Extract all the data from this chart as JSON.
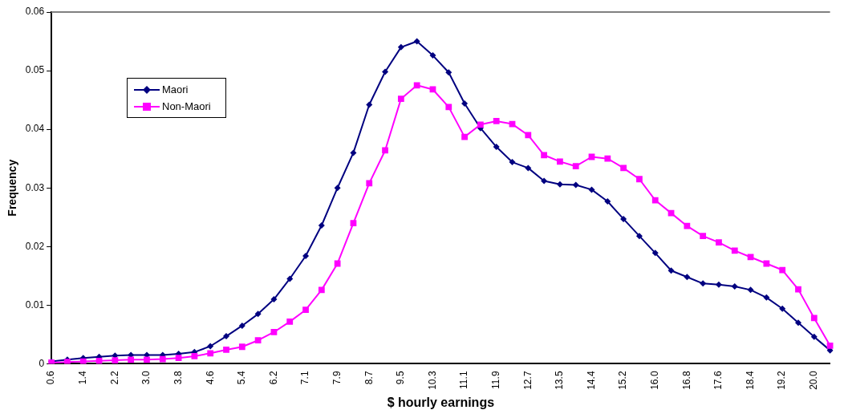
{
  "chart_data": {
    "type": "line",
    "xlabel": "$ hourly earnings",
    "ylabel": "Frequency",
    "categories": [
      "0.6",
      null,
      "1.4",
      null,
      "2.2",
      null,
      "3.0",
      null,
      "3.8",
      null,
      "4.6",
      null,
      "5.4",
      null,
      "6.2",
      null,
      "7.1",
      null,
      "7.9",
      null,
      "8.7",
      null,
      "9.5",
      null,
      "10.3",
      null,
      "11.1",
      null,
      "11.9",
      null,
      "12.7",
      null,
      "13.5",
      null,
      "14.4",
      null,
      "15.2",
      null,
      "16.0",
      null,
      "16.8",
      null,
      "17.6",
      null,
      "18.4",
      null,
      "19.2",
      null,
      "20.0",
      null
    ],
    "series": [
      {
        "name": "Maori",
        "color": "#000080",
        "marker": "diamond",
        "values": [
          0.0004,
          0.0007,
          0.001,
          0.0012,
          0.0014,
          0.0015,
          0.0015,
          0.0015,
          0.0017,
          0.002,
          0.003,
          0.0047,
          0.0065,
          0.0085,
          0.011,
          0.0145,
          0.0184,
          0.0236,
          0.03,
          0.036,
          0.0442,
          0.0498,
          0.054,
          0.055,
          0.0526,
          0.0497,
          0.0444,
          0.0402,
          0.037,
          0.0344,
          0.0334,
          0.0312,
          0.0306,
          0.0305,
          0.0297,
          0.0277,
          0.0247,
          0.0218,
          0.0189,
          0.0159,
          0.0148,
          0.0137,
          0.0135,
          0.0132,
          0.0126,
          0.0113,
          0.0094,
          0.007,
          0.0046,
          0.0023
        ]
      },
      {
        "name": "Non-Maori",
        "color": "#ff00ff",
        "marker": "square",
        "values": [
          0.0002,
          0.0003,
          0.0004,
          0.0005,
          0.0006,
          0.0007,
          0.0007,
          0.0008,
          0.001,
          0.0013,
          0.0018,
          0.0024,
          0.0029,
          0.004,
          0.0054,
          0.0072,
          0.0092,
          0.0126,
          0.0171,
          0.024,
          0.0308,
          0.0364,
          0.0452,
          0.0475,
          0.0468,
          0.0438,
          0.0387,
          0.0408,
          0.0414,
          0.0409,
          0.039,
          0.0356,
          0.0345,
          0.0337,
          0.0353,
          0.035,
          0.0334,
          0.0315,
          0.0279,
          0.0257,
          0.0235,
          0.0218,
          0.0207,
          0.0193,
          0.0182,
          0.0171,
          0.016,
          0.0127,
          0.0078,
          0.0031
        ]
      }
    ],
    "ylim": [
      0,
      0.06
    ],
    "yticks": [
      0,
      0.01,
      0.02,
      0.03,
      0.04,
      0.05,
      0.06
    ],
    "legend": "top left",
    "line_style": "solid",
    "grid": false
  }
}
